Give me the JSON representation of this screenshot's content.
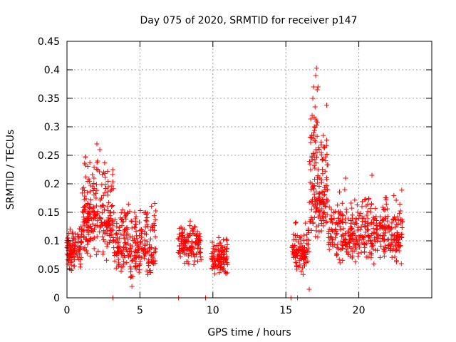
{
  "chart_data": {
    "type": "scatter",
    "title": "Day 075 of 2020, SRMTID for receiver p147",
    "xlabel": "GPS time / hours",
    "ylabel": "SRMTID / TECUs",
    "xlim": [
      0,
      25
    ],
    "ylim": [
      0,
      0.45
    ],
    "x_ticks": [
      0,
      5,
      10,
      15,
      20
    ],
    "x_tick_labels": [
      "0",
      "5",
      "10",
      "15",
      "20"
    ],
    "y_ticks": [
      0,
      0.05,
      0.1,
      0.15,
      0.2,
      0.25,
      0.3,
      0.35,
      0.4,
      0.45
    ],
    "y_tick_labels": [
      "0",
      "0.05",
      "0.1",
      "0.15",
      "0.2",
      "0.25",
      "0.3",
      "0.35",
      "0.4",
      "0.45"
    ],
    "grid": true,
    "marker": "+",
    "series": [
      {
        "name": "SRMTID",
        "color": "#ff0000",
        "clusters": [
          {
            "x_range": [
              0.0,
              1.0
            ],
            "y_range": [
              0.04,
              0.14
            ],
            "y_center": 0.085,
            "count": 110
          },
          {
            "x_range": [
              1.0,
              3.2
            ],
            "y_range": [
              0.06,
              0.27
            ],
            "y_center": 0.14,
            "count": 240
          },
          {
            "x_range": [
              3.2,
              6.1
            ],
            "y_range": [
              0.02,
              0.19
            ],
            "y_center": 0.09,
            "count": 260
          },
          {
            "x_range": [
              7.6,
              9.2
            ],
            "y_range": [
              0.05,
              0.14
            ],
            "y_center": 0.09,
            "count": 130
          },
          {
            "x_range": [
              9.9,
              11.0
            ],
            "y_range": [
              0.03,
              0.12
            ],
            "y_center": 0.07,
            "count": 110
          },
          {
            "x_range": [
              15.4,
              16.6
            ],
            "y_range": [
              0.03,
              0.14
            ],
            "y_center": 0.08,
            "count": 110
          },
          {
            "x_range": [
              16.6,
              17.9
            ],
            "y_range": [
              0.08,
              0.4
            ],
            "y_center": 0.18,
            "count": 170
          },
          {
            "x_range": [
              17.9,
              23.0
            ],
            "y_range": [
              0.05,
              0.21
            ],
            "y_center": 0.11,
            "count": 420
          }
        ],
        "highlight_points": [
          {
            "x": 17.1,
            "y": 0.403
          },
          {
            "x": 17.05,
            "y": 0.39
          },
          {
            "x": 17.2,
            "y": 0.37
          },
          {
            "x": 16.9,
            "y": 0.37
          },
          {
            "x": 17.15,
            "y": 0.365
          },
          {
            "x": 16.85,
            "y": 0.35
          },
          {
            "x": 17.0,
            "y": 0.335
          },
          {
            "x": 16.8,
            "y": 0.32
          },
          {
            "x": 17.1,
            "y": 0.31
          },
          {
            "x": 16.95,
            "y": 0.3
          },
          {
            "x": 16.9,
            "y": 0.28
          },
          {
            "x": 17.05,
            "y": 0.26
          },
          {
            "x": 16.95,
            "y": 0.25
          },
          {
            "x": 2.05,
            "y": 0.27
          },
          {
            "x": 2.25,
            "y": 0.26
          },
          {
            "x": 2.1,
            "y": 0.24
          },
          {
            "x": 20.9,
            "y": 0.215
          },
          {
            "x": 19.1,
            "y": 0.21
          },
          {
            "x": 16.6,
            "y": 0.015
          },
          {
            "x": 4.45,
            "y": 0.02
          }
        ],
        "zero_points": [
          3.15,
          7.65,
          9.5,
          15.35,
          15.8
        ]
      }
    ]
  }
}
